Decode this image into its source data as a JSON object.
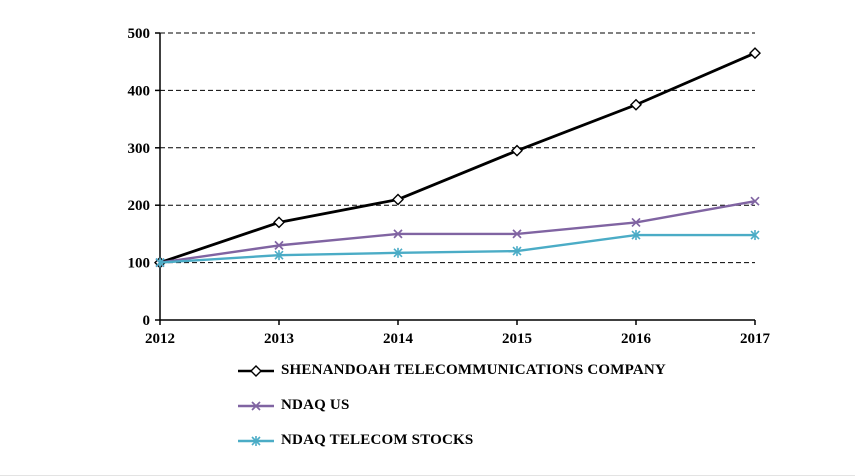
{
  "chart_data": {
    "type": "line",
    "title": "",
    "xlabel": "",
    "ylabel": "",
    "x": [
      2012,
      2013,
      2014,
      2015,
      2016,
      2017
    ],
    "series": [
      {
        "name": "SHENANDOAH TELECOMMUNICATIONS COMPANY",
        "color": "#000000",
        "marker": "diamond",
        "values": [
          100,
          170,
          210,
          295,
          375,
          465
        ]
      },
      {
        "name": "NDAQ US",
        "color": "#8064A2",
        "marker": "x",
        "values": [
          100,
          130,
          150,
          150,
          170,
          207
        ]
      },
      {
        "name": "NDAQ TELECOM STOCKS",
        "color": "#4BACC6",
        "marker": "asterisk",
        "values": [
          100,
          113,
          117,
          120,
          148,
          148
        ]
      }
    ],
    "ylim": [
      0,
      500
    ],
    "yticks": [
      0,
      100,
      200,
      300,
      400,
      500
    ],
    "grid": "dashed-horizontal",
    "legend_position": "bottom-left"
  }
}
